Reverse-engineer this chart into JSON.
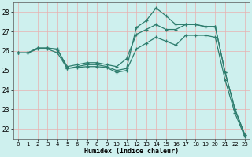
{
  "xlabel": "Humidex (Indice chaleur)",
  "xlim": [
    -0.5,
    23.5
  ],
  "ylim": [
    21.5,
    28.5
  ],
  "yticks": [
    22,
    23,
    24,
    25,
    26,
    27,
    28
  ],
  "xticks": [
    0,
    1,
    2,
    3,
    4,
    5,
    6,
    7,
    8,
    9,
    10,
    11,
    12,
    13,
    14,
    15,
    16,
    17,
    18,
    19,
    20,
    21,
    22,
    23
  ],
  "bg_color": "#cef0ee",
  "grid_color": "#e8b0b0",
  "line_color": "#2e7d6e",
  "lines": [
    {
      "x": [
        0,
        1,
        2,
        3,
        4,
        5,
        6,
        7,
        8,
        9,
        10,
        11,
        12,
        13,
        14,
        15,
        16,
        17,
        18,
        19,
        20,
        21,
        22,
        23
      ],
      "y": [
        25.9,
        25.9,
        26.15,
        26.15,
        26.1,
        25.1,
        25.2,
        25.3,
        25.3,
        25.2,
        25.0,
        25.1,
        27.2,
        27.55,
        28.2,
        27.8,
        27.35,
        27.35,
        27.35,
        27.25,
        27.25,
        24.9,
        23.0,
        21.7
      ]
    },
    {
      "x": [
        0,
        1,
        2,
        3,
        4,
        5,
        6,
        7,
        8,
        9,
        10,
        11,
        12,
        13,
        14,
        15,
        16,
        17,
        18,
        19,
        20,
        21,
        22,
        23
      ],
      "y": [
        25.9,
        25.9,
        26.15,
        26.15,
        26.05,
        25.2,
        25.3,
        25.4,
        25.4,
        25.3,
        25.2,
        25.6,
        26.85,
        27.1,
        27.35,
        27.1,
        27.1,
        27.35,
        27.35,
        27.25,
        27.25,
        24.9,
        23.0,
        21.7
      ]
    },
    {
      "x": [
        0,
        1,
        2,
        3,
        4,
        5,
        6,
        7,
        8,
        9,
        10,
        11,
        12,
        13,
        14,
        15,
        16,
        17,
        18,
        19,
        20,
        21,
        22,
        23
      ],
      "y": [
        25.9,
        25.9,
        26.1,
        26.1,
        25.9,
        25.1,
        25.15,
        25.2,
        25.2,
        25.15,
        24.9,
        25.0,
        26.1,
        26.4,
        26.7,
        26.5,
        26.3,
        26.8,
        26.8,
        26.8,
        26.7,
        24.5,
        22.8,
        21.6
      ]
    }
  ]
}
